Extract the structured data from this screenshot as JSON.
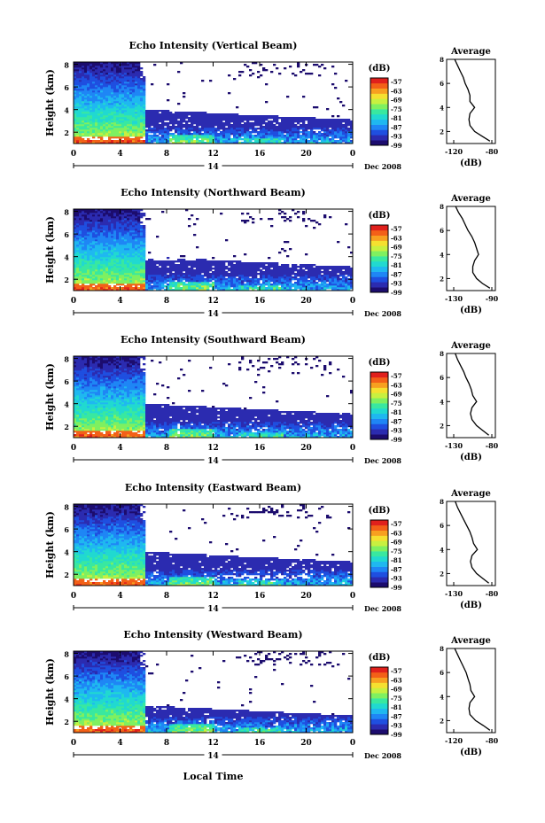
{
  "panels": [
    {
      "title": "Echo Intensity (Vertical Beam)",
      "avg_xticks": [
        "-120",
        "-80"
      ],
      "avg_xlim": [
        -120,
        -80
      ]
    },
    {
      "title": "Echo Intensity (Northward Beam)",
      "avg_xticks": [
        "-130",
        "-90"
      ],
      "avg_xlim": [
        -130,
        -90
      ]
    },
    {
      "title": "Echo Intensity (Southward Beam)",
      "avg_xticks": [
        "-130",
        "-80"
      ],
      "avg_xlim": [
        -130,
        -80
      ]
    },
    {
      "title": "Echo Intensity (Eastward Beam)",
      "avg_xticks": [
        "-130",
        "-80"
      ],
      "avg_xlim": [
        -130,
        -80
      ]
    },
    {
      "title": "Echo Intensity (Westward Beam)",
      "avg_xticks": [
        "-120",
        "-80"
      ],
      "avg_xlim": [
        -120,
        -80
      ]
    }
  ],
  "ylabel": "Height (km)",
  "yticks": [
    "2",
    "4",
    "6",
    "8"
  ],
  "xticks": [
    "0",
    "4",
    "8",
    "12",
    "16",
    "20",
    "0"
  ],
  "day_label": "14",
  "date_label": "Dec 2008",
  "xlabel": "Local Time",
  "colorbar": {
    "unit": "(dB)",
    "labels": [
      "-57",
      "-63",
      "-69",
      "-75",
      "-81",
      "-87",
      "-93",
      "-99"
    ],
    "colors": [
      "#1c0c6e",
      "#2b2bb0",
      "#1f4fe0",
      "#1f86f5",
      "#1fb8f0",
      "#21d9d0",
      "#39e8a0",
      "#7ff060",
      "#c8f040",
      "#f5e030",
      "#f7a020",
      "#f36018",
      "#e0201c"
    ]
  },
  "avg_title": "Average",
  "avg_xlabel": "(dB)",
  "avg_yticks": [
    "2",
    "4",
    "6",
    "8"
  ],
  "chart_data": [
    {
      "type": "heatmap",
      "title": "Echo Intensity (Vertical Beam)",
      "xlabel": "",
      "ylabel": "Height (km)",
      "xlim": [
        0,
        24
      ],
      "ylim": [
        1,
        8
      ],
      "zlim": [
        -99,
        -57
      ],
      "zlabel": "(dB)"
    },
    {
      "type": "line",
      "title": "Average",
      "xlabel": "(dB)",
      "xlim": [
        -120,
        -80
      ],
      "ylim": [
        1,
        8
      ],
      "y": [
        1.2,
        1.6,
        2.0,
        2.5,
        3.0,
        3.5,
        4.0,
        4.5,
        5.0,
        5.5,
        6.0,
        6.5,
        7.0,
        7.5,
        8.0
      ],
      "x": [
        -82,
        -90,
        -98,
        -103,
        -104,
        -103,
        -98,
        -103,
        -103,
        -105,
        -108,
        -110,
        -113,
        -116,
        -119
      ]
    },
    {
      "type": "heatmap",
      "title": "Echo Intensity (Northward Beam)",
      "xlabel": "",
      "ylabel": "Height (km)",
      "xlim": [
        0,
        24
      ],
      "ylim": [
        1,
        8
      ],
      "zlim": [
        -99,
        -57
      ],
      "zlabel": "(dB)"
    },
    {
      "type": "line",
      "title": "Average",
      "xlabel": "(dB)",
      "xlim": [
        -130,
        -90
      ],
      "ylim": [
        1,
        8
      ],
      "y": [
        1.2,
        1.6,
        2.0,
        2.5,
        3.0,
        3.5,
        4.0,
        4.5,
        5.0,
        5.5,
        6.0,
        6.5,
        7.0,
        7.5,
        8.0
      ],
      "x": [
        -92,
        -100,
        -106,
        -110,
        -110,
        -108,
        -104,
        -106,
        -108,
        -111,
        -115,
        -118,
        -121,
        -125,
        -128
      ]
    },
    {
      "type": "heatmap",
      "title": "Echo Intensity (Southward Beam)",
      "xlabel": "",
      "ylabel": "Height (km)",
      "xlim": [
        0,
        24
      ],
      "ylim": [
        1,
        8
      ],
      "zlim": [
        -99,
        -57
      ],
      "zlabel": "(dB)"
    },
    {
      "type": "line",
      "title": "Average",
      "xlabel": "(dB)",
      "xlim": [
        -130,
        -80
      ],
      "ylim": [
        1,
        8
      ],
      "y": [
        1.2,
        1.6,
        2.0,
        2.5,
        3.0,
        3.5,
        4.0,
        4.5,
        5.0,
        5.5,
        6.0,
        6.5,
        7.0,
        7.5,
        8.0
      ],
      "x": [
        -84,
        -92,
        -100,
        -106,
        -108,
        -106,
        -100,
        -105,
        -107,
        -110,
        -114,
        -117,
        -121,
        -125,
        -128
      ]
    },
    {
      "type": "heatmap",
      "title": "Echo Intensity (Eastward Beam)",
      "xlabel": "",
      "ylabel": "Height (km)",
      "xlim": [
        0,
        24
      ],
      "ylim": [
        1,
        8
      ],
      "zlim": [
        -99,
        -57
      ],
      "zlabel": "(dB)"
    },
    {
      "type": "line",
      "title": "Average",
      "xlabel": "(dB)",
      "xlim": [
        -130,
        -80
      ],
      "ylim": [
        1,
        8
      ],
      "y": [
        1.2,
        1.6,
        2.0,
        2.5,
        3.0,
        3.5,
        4.0,
        4.5,
        5.0,
        5.5,
        6.0,
        6.5,
        7.0,
        7.5,
        8.0
      ],
      "x": [
        -84,
        -92,
        -100,
        -106,
        -108,
        -106,
        -99,
        -104,
        -106,
        -109,
        -113,
        -117,
        -121,
        -125,
        -128
      ]
    },
    {
      "type": "heatmap",
      "title": "Echo Intensity (Westward Beam)",
      "xlabel": "Local Time",
      "ylabel": "Height (km)",
      "xlim": [
        0,
        24
      ],
      "ylim": [
        1,
        8
      ],
      "zlim": [
        -99,
        -57
      ],
      "zlabel": "(dB)"
    },
    {
      "type": "line",
      "title": "Average",
      "xlabel": "(dB)",
      "xlim": [
        -120,
        -80
      ],
      "ylim": [
        1,
        8
      ],
      "y": [
        1.2,
        1.6,
        2.0,
        2.5,
        3.0,
        3.5,
        4.0,
        4.5,
        5.0,
        5.5,
        6.0,
        6.5,
        7.0,
        7.5,
        8.0
      ],
      "x": [
        -82,
        -89,
        -97,
        -103,
        -104,
        -103,
        -98,
        -102,
        -103,
        -105,
        -107,
        -110,
        -113,
        -116,
        -119
      ]
    }
  ]
}
